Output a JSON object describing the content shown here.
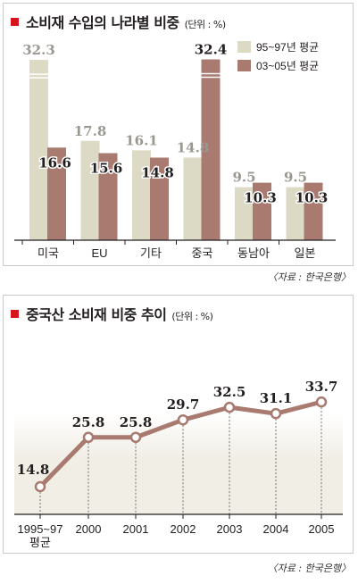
{
  "source_label": "〈자료 : 한국은행〉",
  "chart_data": [
    {
      "type": "bar",
      "title": "소비재 수입의 나라별 비중",
      "unit": "(단위 : %)",
      "categories": [
        "미국",
        "EU",
        "기타",
        "중국",
        "동남아",
        "일본"
      ],
      "series": [
        {
          "name": "95~97년 평균",
          "values": [
            32.3,
            17.8,
            16.1,
            14.8,
            9.5,
            9.5
          ],
          "color": "#dcd9c4"
        },
        {
          "name": "03~05년 평균",
          "values": [
            16.6,
            15.6,
            14.8,
            32.4,
            10.3,
            10.3
          ],
          "color": "#a87a70"
        }
      ],
      "value_labels": [
        [
          "32.3",
          "17.8",
          "16.1",
          "14.8",
          "9.5",
          "9.5"
        ],
        [
          "16.6",
          "15.6",
          "14.8",
          "32.4",
          "10.3",
          "10.3"
        ]
      ],
      "ylim": [
        0,
        36
      ],
      "legend_position": "top-right"
    },
    {
      "type": "line",
      "title": "중국산 소비재 비중 추이",
      "unit": "(단위 : %)",
      "categories": [
        "1995~97\n평균",
        "2000",
        "2001",
        "2002",
        "2003",
        "2004",
        "2005"
      ],
      "values": [
        14.8,
        25.8,
        25.8,
        29.7,
        32.5,
        31.1,
        33.7
      ],
      "value_labels": [
        "14.8",
        "25.8",
        "25.8",
        "29.7",
        "32.5",
        "31.1",
        "33.7"
      ],
      "color": "#a87a70",
      "ylim": [
        10,
        36
      ]
    }
  ]
}
